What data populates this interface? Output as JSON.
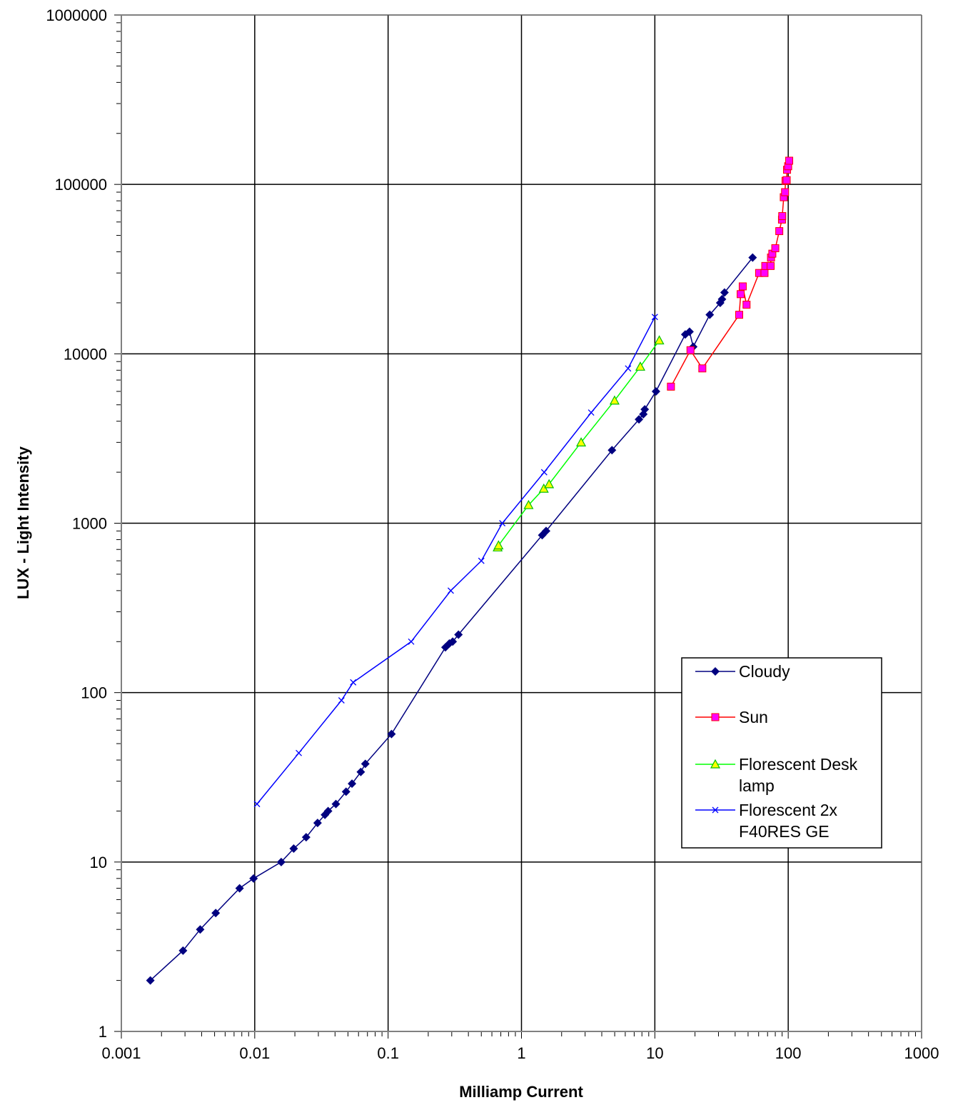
{
  "chart_data": {
    "type": "scatter",
    "title": "",
    "xlabel": "Milliamp Current",
    "ylabel": "LUX - Light Intensity",
    "xscale": "log",
    "yscale": "log",
    "xlim": [
      0.001,
      1000
    ],
    "ylim": [
      1,
      1000000
    ],
    "xticks": [
      "0.001",
      "0.01",
      "0.1",
      "1",
      "10",
      "100",
      "1000"
    ],
    "yticks": [
      "1",
      "10",
      "100",
      "1000",
      "10000",
      "100000",
      "1000000"
    ],
    "grid": true,
    "legend_position": "lower-right",
    "series": [
      {
        "name": "Cloudy",
        "color": "#000080",
        "marker": "diamond",
        "points": [
          [
            0.00165,
            2
          ],
          [
            0.0029,
            3
          ],
          [
            0.0039,
            4
          ],
          [
            0.0051,
            5
          ],
          [
            0.0077,
            7
          ],
          [
            0.0098,
            8
          ],
          [
            0.0158,
            10
          ],
          [
            0.0196,
            12
          ],
          [
            0.0243,
            14
          ],
          [
            0.0296,
            17
          ],
          [
            0.0336,
            19
          ],
          [
            0.0355,
            20
          ],
          [
            0.0406,
            22
          ],
          [
            0.0484,
            26
          ],
          [
            0.0536,
            29
          ],
          [
            0.0624,
            34
          ],
          [
            0.0675,
            38
          ],
          [
            0.106,
            57
          ],
          [
            0.269,
            185
          ],
          [
            0.288,
            195
          ],
          [
            0.305,
            200
          ],
          [
            0.337,
            220
          ],
          [
            1.43,
            850
          ],
          [
            1.53,
            900
          ],
          [
            4.77,
            2700
          ],
          [
            7.6,
            4100
          ],
          [
            8.2,
            4400
          ],
          [
            8.4,
            4700
          ],
          [
            10.2,
            6000
          ],
          [
            16.9,
            13000
          ],
          [
            18.2,
            13500
          ],
          [
            19.4,
            11000
          ],
          [
            25.8,
            17000
          ],
          [
            30.9,
            20000
          ],
          [
            31.9,
            21000
          ],
          [
            33.3,
            23000
          ],
          [
            54.1,
            37000
          ]
        ]
      },
      {
        "name": "Sun",
        "color": "#ff0000",
        "marker": "square",
        "points": [
          [
            13.2,
            6400
          ],
          [
            18.5,
            10500
          ],
          [
            22.7,
            8200
          ],
          [
            42.9,
            17000
          ],
          [
            44.0,
            22500
          ],
          [
            45.6,
            25000
          ],
          [
            48.7,
            19500
          ],
          [
            60.5,
            30000
          ],
          [
            66.4,
            30000
          ],
          [
            67.3,
            33000
          ],
          [
            73.8,
            33000
          ],
          [
            74.3,
            37000
          ],
          [
            76.0,
            39000
          ],
          [
            80.0,
            42000
          ],
          [
            85.7,
            53000
          ],
          [
            89.8,
            62000
          ],
          [
            90.2,
            65000
          ],
          [
            92.6,
            84000
          ],
          [
            94.7,
            90000
          ],
          [
            95.5,
            105000
          ],
          [
            97.4,
            106000
          ],
          [
            98.0,
            122000
          ],
          [
            99.9,
            128000
          ],
          [
            101.7,
            138000
          ]
        ]
      },
      {
        "name": "Florescent Desk lamp",
        "color": "#00ff00",
        "marker": "triangle",
        "points": [
          [
            0.663,
            720
          ],
          [
            0.673,
            740
          ],
          [
            1.13,
            1280
          ],
          [
            1.47,
            1600
          ],
          [
            1.61,
            1700
          ],
          [
            2.8,
            3000
          ],
          [
            4.99,
            5300
          ],
          [
            7.78,
            8400
          ],
          [
            10.8,
            12000
          ]
        ]
      },
      {
        "name": "Florescent 2x F40RES GE",
        "color": "#0000ff",
        "marker": "x",
        "points": [
          [
            0.0104,
            22
          ],
          [
            0.0214,
            44
          ],
          [
            0.0447,
            90
          ],
          [
            0.0547,
            115
          ],
          [
            0.149,
            200
          ],
          [
            0.295,
            400
          ],
          [
            0.5,
            600
          ],
          [
            0.718,
            1000
          ],
          [
            1.48,
            2000
          ],
          [
            3.33,
            4500
          ],
          [
            6.3,
            8200
          ],
          [
            10.0,
            16500
          ]
        ]
      }
    ]
  }
}
